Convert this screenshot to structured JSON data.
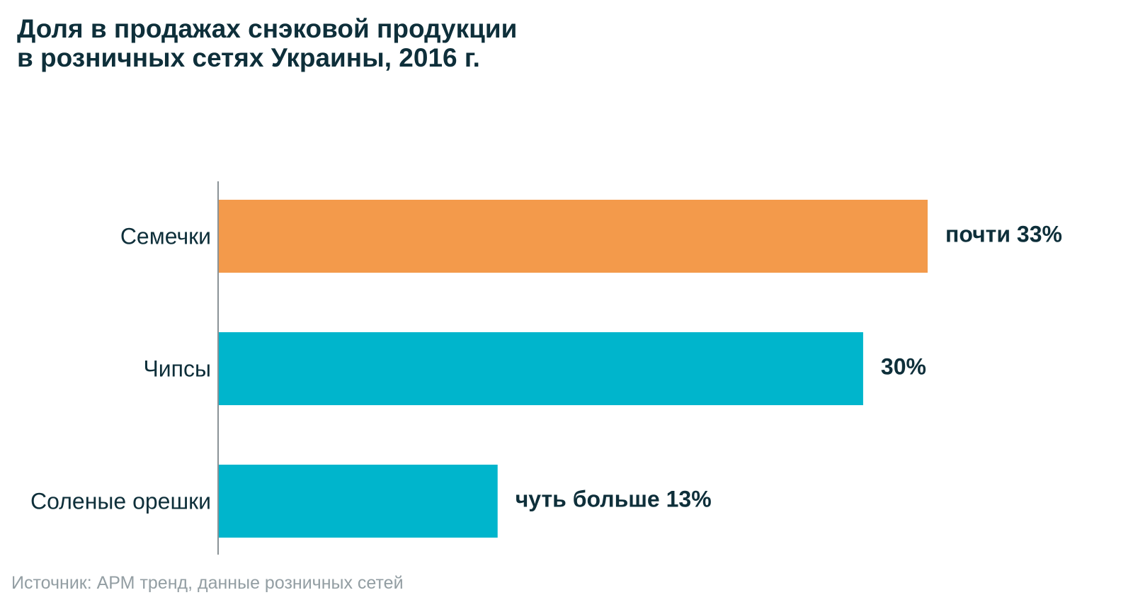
{
  "chart_data": {
    "type": "bar",
    "orientation": "horizontal",
    "title": "Доля в продажах снэковой продукции в розничных сетях Украины, 2016 г.",
    "title_lines": [
      "Доля в продажах снэковой продукции",
      "в розничных сетях Украины, 2016 г."
    ],
    "categories": [
      "Семечки",
      "Чипсы",
      "Соленые орешки"
    ],
    "values": [
      33,
      30,
      13
    ],
    "unit": "%",
    "data_labels": [
      "почти 33%",
      "30%",
      "чуть больше 13%"
    ],
    "colors": [
      "#f39a4b",
      "#00b5cc",
      "#00b5cc"
    ],
    "axis_color": "#8a9296",
    "xlim": [
      0,
      33
    ],
    "grid": false,
    "legend": "none",
    "xlabel": "",
    "ylabel": "",
    "source": "Источник: АРМ тренд, данные розничных сетей"
  }
}
